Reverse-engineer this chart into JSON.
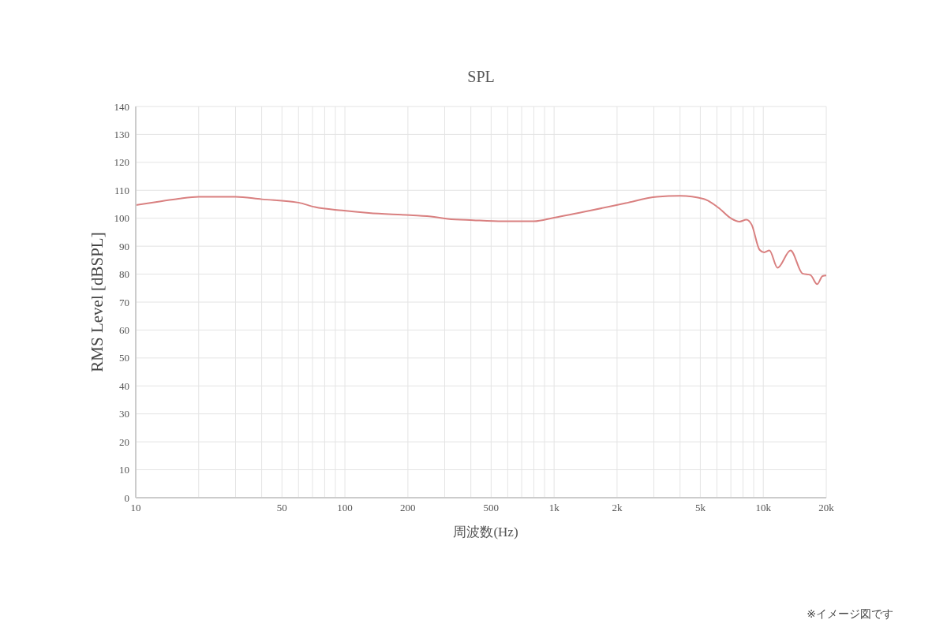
{
  "chart_data": {
    "type": "line",
    "title": "SPL",
    "xlabel": "周波数(Hz)",
    "ylabel": "RMS Level [dBSPL]",
    "annotations": [
      "※イメージ図です"
    ],
    "x": [
      10,
      13,
      16,
      20,
      30,
      40,
      60,
      72,
      97,
      130,
      205,
      267,
      310,
      410,
      570,
      800,
      1000,
      1500,
      2200,
      3100,
      4000,
      5200,
      6100,
      7000,
      7700,
      8300,
      8800,
      9600,
      10100,
      10700,
      11700,
      13500,
      15400,
      16800,
      18100,
      19200,
      20000
    ],
    "values": [
      104.7,
      106,
      107,
      107.7,
      107.7,
      106.8,
      105.6,
      104,
      102.8,
      101.9,
      101.1,
      100.5,
      99.8,
      99.3,
      98.9,
      98.9,
      100.2,
      102.8,
      105.4,
      107.7,
      108,
      106.9,
      103.8,
      100,
      98.8,
      99.5,
      97.7,
      88.7,
      87.8,
      88.5,
      82.3,
      88.5,
      80.2,
      79.7,
      76.4,
      79.3,
      79.5
    ],
    "color": "#d98080",
    "marker": "none",
    "line_style": "solid",
    "log": "x",
    "grid": true,
    "xlim": [
      10,
      20000
    ],
    "xticks": [
      10,
      {
        "value": 20,
        "label": null
      },
      {
        "value": 30,
        "label": null
      },
      {
        "value": 40,
        "label": null
      },
      50,
      {
        "value": 60,
        "label": null
      },
      {
        "value": 70,
        "label": null
      },
      {
        "value": 80,
        "label": null
      },
      {
        "value": 90,
        "label": null
      },
      100,
      200,
      {
        "value": 300,
        "label": null
      },
      {
        "value": 400,
        "label": null
      },
      500,
      {
        "value": 600,
        "label": null
      },
      {
        "value": 700,
        "label": null
      },
      {
        "value": 800,
        "label": null
      },
      {
        "value": 900,
        "label": null
      },
      {
        "value": 1000,
        "label": "1k"
      },
      {
        "value": 2000,
        "label": "2k"
      },
      {
        "value": 3000,
        "label": null
      },
      {
        "value": 4000,
        "label": null
      },
      {
        "value": 5000,
        "label": "5k"
      },
      {
        "value": 6000,
        "label": null
      },
      {
        "value": 7000,
        "label": null
      },
      {
        "value": 8000,
        "label": null
      },
      {
        "value": 9000,
        "label": null
      },
      {
        "value": 10000,
        "label": "10k"
      },
      {
        "value": 20000,
        "label": "20k"
      }
    ],
    "ylim": [
      0,
      140
    ],
    "yticks": [
      0,
      10,
      20,
      30,
      40,
      50,
      60,
      70,
      80,
      90,
      100,
      110,
      120,
      130,
      140
    ]
  }
}
